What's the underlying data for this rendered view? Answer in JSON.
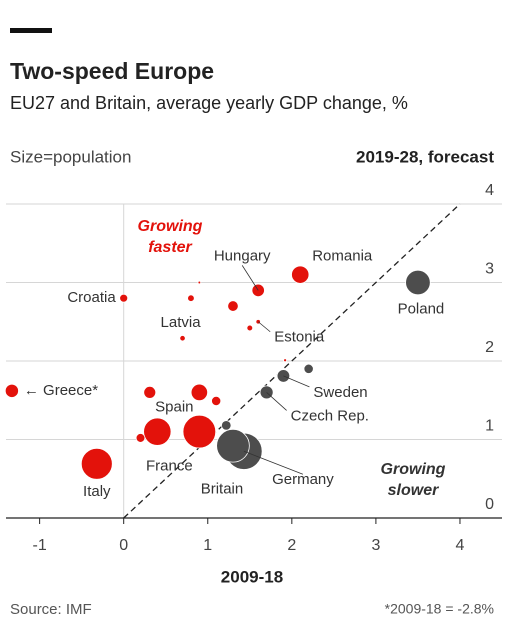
{
  "chart_data": {
    "type": "bubble",
    "title": "Two-speed Europe",
    "subtitle": "EU27 and Britain, average yearly GDP change, %",
    "size_note": "Size=population",
    "y_axis_label": "2019-28, forecast",
    "x_axis_label": "2009-18",
    "source": "Source: IMF",
    "footnote": "*2009-18 = -2.8%",
    "annotations": [
      {
        "lines": [
          "Growing",
          "faster"
        ],
        "color": "#e3120b"
      },
      {
        "lines": [
          "Growing",
          "slower"
        ],
        "color": "#333333"
      }
    ],
    "xlim": [
      -1.4,
      4.5
    ],
    "ylim": [
      0,
      4
    ],
    "xticks": [
      -1,
      0,
      1,
      2,
      3,
      4
    ],
    "yticks": [
      0,
      1,
      2,
      3,
      4
    ],
    "grid": true,
    "labels": [
      "← Greece*",
      "Croatia",
      "Latvia",
      "Hungary",
      "Romania",
      "Estonia",
      "Poland",
      "Sweden",
      "Czech Rep.",
      "Germany",
      "Britain",
      "France",
      "Spain",
      "Italy",
      null,
      null,
      null,
      null,
      null,
      null,
      null,
      null,
      null,
      null,
      null
    ],
    "x": [
      -1.33,
      0,
      0.7,
      1.6,
      2.1,
      1.6,
      3.5,
      1.9,
      1.7,
      1.43,
      1.3,
      0.9,
      0.4,
      -0.32,
      0.9,
      0.8,
      1.3,
      1.5,
      1.92,
      0.31,
      0.9,
      1.1,
      0.2,
      1.22,
      2.2
    ],
    "y": [
      1.62,
      2.8,
      2.29,
      2.9,
      3.1,
      2.5,
      3.0,
      1.81,
      1.6,
      0.85,
      0.92,
      1.1,
      1.1,
      0.69,
      3.0,
      2.8,
      2.7,
      2.42,
      2.01,
      1.6,
      1.6,
      1.49,
      1.02,
      1.18,
      1.9
    ],
    "sizes": [
      11,
      4,
      1.9,
      9.8,
      19,
      1.3,
      38,
      10,
      10.7,
      83,
      67,
      67,
      47,
      60,
      0.5,
      2.8,
      7,
      2.1,
      0.6,
      9,
      17,
      5.4,
      4.9,
      5.8,
      5.5
    ],
    "colors": [
      "#e3120b",
      "#e3120b",
      "#e3120b",
      "#e3120b",
      "#e3120b",
      "#e3120b",
      "#4d4d4d",
      "#4d4d4d",
      "#4d4d4d",
      "#4d4d4d",
      "#4d4d4d",
      "#e3120b",
      "#e3120b",
      "#e3120b",
      "#e3120b",
      "#e3120b",
      "#e3120b",
      "#e3120b",
      "#e3120b",
      "#e3120b",
      "#e3120b",
      "#e3120b",
      "#e3120b",
      "#4d4d4d",
      "#4d4d4d"
    ]
  }
}
